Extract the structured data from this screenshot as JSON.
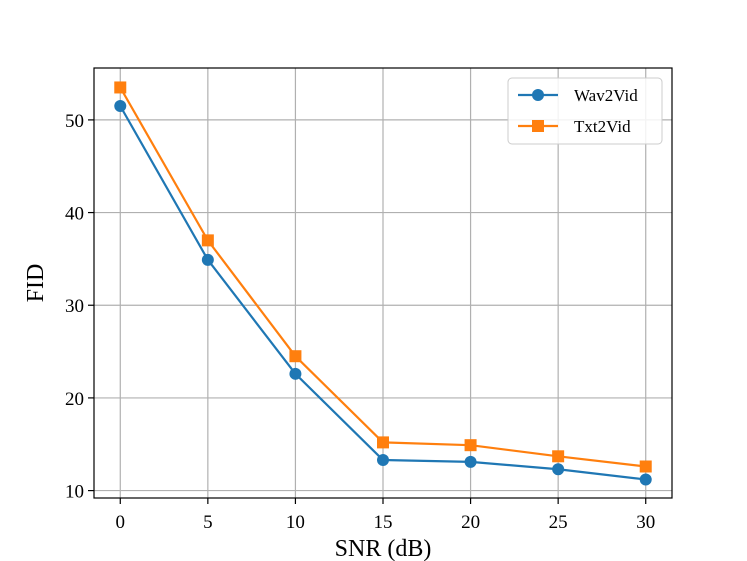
{
  "chart_data": {
    "type": "line",
    "title": "",
    "xlabel": "SNR (dB)",
    "ylabel": "FID",
    "x": [
      0,
      5,
      10,
      15,
      20,
      25,
      30
    ],
    "xlim": [
      -1.5,
      31.5
    ],
    "ylim": [
      9.2,
      55.6
    ],
    "xticks": [
      0,
      5,
      10,
      15,
      20,
      25,
      30
    ],
    "yticks": [
      10,
      20,
      30,
      40,
      50
    ],
    "grid": true,
    "legend_position": "top-right",
    "series": [
      {
        "name": "Wav2Vid",
        "marker": "circle",
        "color": "#1f77b4",
        "values": [
          51.5,
          34.9,
          22.6,
          13.3,
          13.1,
          12.3,
          11.2
        ]
      },
      {
        "name": "Txt2Vid",
        "marker": "square",
        "color": "#ff7f0e",
        "values": [
          53.5,
          37.0,
          24.5,
          15.2,
          14.9,
          13.7,
          12.6
        ]
      }
    ]
  }
}
